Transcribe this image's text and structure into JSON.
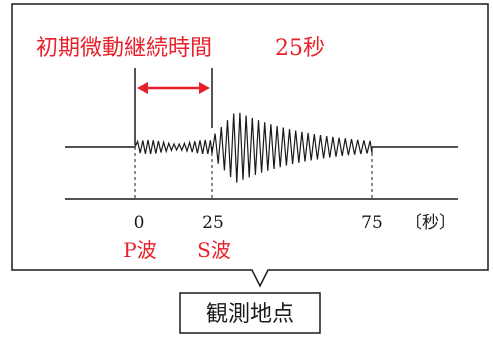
{
  "title": "初期微動継続時間",
  "duration_value": "25秒",
  "time_axis": {
    "ticks": [
      {
        "label": "0",
        "value": 0
      },
      {
        "label": "25",
        "value": 25
      },
      {
        "label": "75",
        "value": 75
      }
    ],
    "unit_label": "〔秒〕"
  },
  "wave_labels": {
    "p_wave": "P波",
    "s_wave": "S波"
  },
  "station_label": "観測地点",
  "colors": {
    "accent_red": "#e8202a",
    "line_black": "#1a1a1a"
  }
}
